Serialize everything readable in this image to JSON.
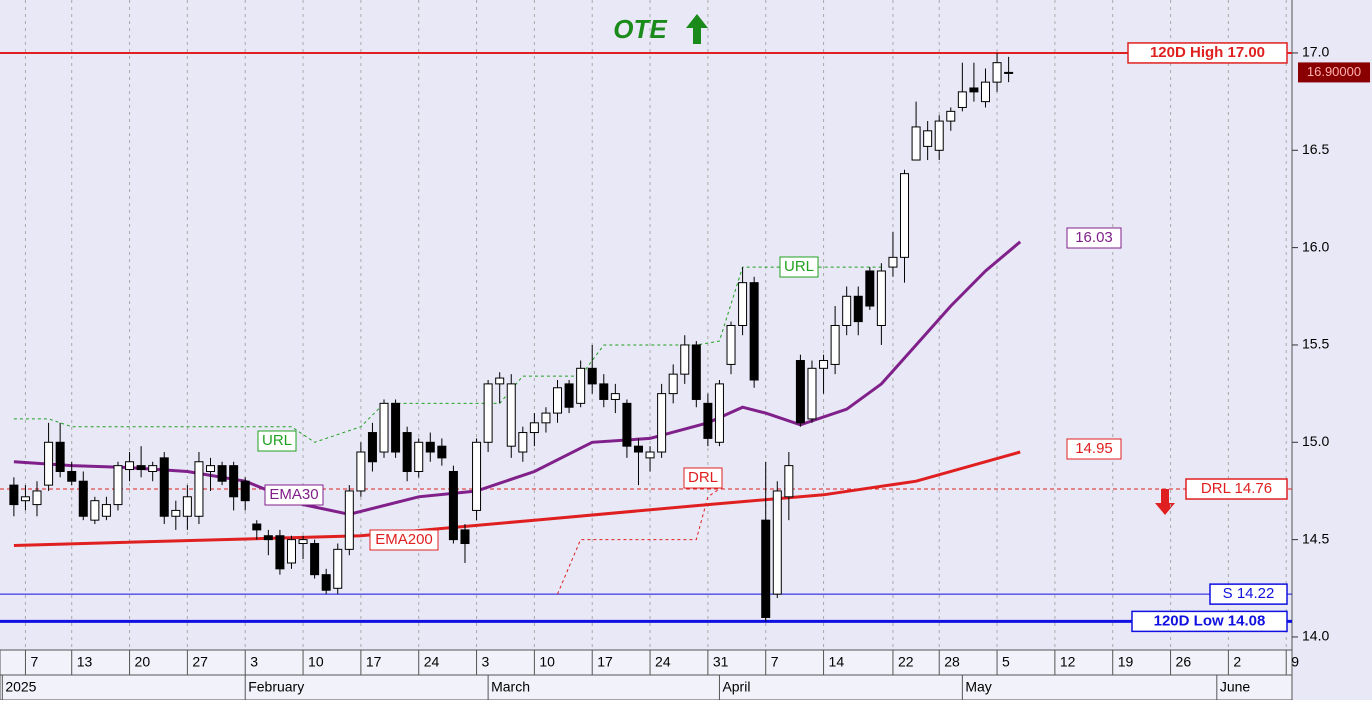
{
  "chart_data": {
    "type": "candlestick",
    "title": "OTE",
    "xlim": [
      -1.2,
      110.5
    ],
    "ylim": [
      13.933,
      17.272
    ],
    "yticks": [
      {
        "value": 14.0,
        "label": "14.0"
      },
      14.5,
      {
        "value": 15.0,
        "label": "15.0"
      },
      15.5,
      {
        "value": 16.0,
        "label": "16.0"
      },
      16.5,
      {
        "value": 17.0,
        "label": "17.0"
      }
    ],
    "xticks": [
      {
        "value": 1,
        "label": "7"
      },
      {
        "value": 5,
        "label": "13"
      },
      {
        "value": 10,
        "label": "20"
      },
      {
        "value": 15,
        "label": "27"
      },
      {
        "value": 20,
        "label": "3"
      },
      {
        "value": 25,
        "label": "10"
      },
      {
        "value": 30,
        "label": "17"
      },
      {
        "value": 35,
        "label": "24"
      },
      {
        "value": 40,
        "label": "3"
      },
      {
        "value": 45,
        "label": "10"
      },
      {
        "value": 50,
        "label": "17"
      },
      {
        "value": 55,
        "label": "24"
      },
      {
        "value": 60,
        "label": "31"
      },
      {
        "value": 65,
        "label": "7"
      },
      {
        "value": 70,
        "label": "14"
      },
      {
        "value": 76,
        "label": "22"
      },
      {
        "value": 80,
        "label": "28"
      },
      {
        "value": 85,
        "label": "5"
      },
      {
        "value": 90,
        "label": "12"
      },
      {
        "value": 95,
        "label": "19"
      },
      {
        "value": 100,
        "label": "26"
      },
      {
        "value": 105,
        "label": "2"
      },
      {
        "value": 110,
        "label": "9"
      }
    ],
    "month_ticks": [
      {
        "value": -1,
        "label": "2025"
      },
      {
        "value": 20,
        "label": "February"
      },
      {
        "value": 41,
        "label": "March"
      },
      {
        "value": 61,
        "label": "April"
      },
      {
        "value": 82,
        "label": "May"
      },
      {
        "value": 104,
        "label": "June"
      }
    ],
    "open": [
      14.78,
      14.7,
      14.68,
      14.78,
      15.0,
      14.85,
      14.8,
      14.6,
      14.62,
      14.68,
      14.86,
      14.88,
      14.85,
      14.92,
      14.62,
      14.62,
      14.62,
      14.85,
      14.88,
      14.88,
      14.8,
      14.58,
      14.52,
      14.52,
      14.38,
      14.48,
      14.48,
      14.32,
      14.25,
      14.45,
      14.75,
      15.05,
      14.95,
      15.2,
      15.05,
      14.85,
      15.0,
      14.98,
      14.85,
      14.55,
      14.65,
      15.0,
      15.3,
      14.98,
      14.95,
      15.05,
      15.1,
      15.15,
      15.3,
      15.2,
      15.38,
      15.3,
      15.22,
      15.2,
      14.98,
      14.92,
      14.95,
      15.25,
      15.35,
      15.5,
      15.2,
      15.0,
      15.4,
      15.6,
      15.82,
      14.6,
      14.22,
      14.72,
      15.42,
      15.12,
      15.38,
      15.4,
      15.6,
      15.75,
      15.88,
      15.6,
      15.9,
      15.95,
      16.45,
      16.52,
      16.5,
      16.65,
      16.72,
      16.82,
      16.75,
      16.85,
      16.9
    ],
    "high": [
      14.82,
      14.78,
      14.8,
      15.1,
      15.1,
      14.9,
      14.85,
      14.72,
      14.72,
      14.9,
      14.95,
      14.98,
      14.9,
      14.95,
      14.7,
      14.78,
      14.95,
      14.92,
      14.9,
      14.9,
      14.82,
      14.6,
      14.55,
      14.55,
      14.52,
      14.52,
      14.5,
      14.35,
      14.48,
      14.78,
      15.0,
      15.1,
      15.22,
      15.22,
      15.08,
      15.02,
      15.05,
      15.02,
      14.88,
      14.58,
      15.02,
      15.32,
      15.36,
      15.35,
      15.08,
      15.15,
      15.18,
      15.32,
      15.32,
      15.42,
      15.5,
      15.35,
      15.3,
      15.22,
      15.02,
      14.98,
      15.3,
      15.4,
      15.55,
      15.52,
      15.25,
      15.32,
      15.62,
      15.9,
      15.85,
      14.9,
      14.8,
      14.95,
      15.45,
      15.42,
      15.45,
      15.7,
      15.8,
      15.8,
      15.9,
      15.92,
      16.08,
      16.4,
      16.75,
      16.65,
      16.68,
      16.72,
      16.95,
      16.95,
      16.92,
      17.0,
      16.98
    ],
    "low": [
      14.62,
      14.65,
      14.62,
      14.75,
      14.82,
      14.78,
      14.6,
      14.58,
      14.6,
      14.65,
      14.8,
      14.82,
      14.8,
      14.58,
      14.55,
      14.55,
      14.58,
      14.75,
      14.78,
      14.65,
      14.65,
      14.5,
      14.42,
      14.32,
      14.35,
      14.4,
      14.3,
      14.22,
      14.22,
      14.42,
      14.72,
      14.85,
      14.92,
      14.92,
      14.8,
      14.82,
      14.9,
      14.88,
      14.48,
      14.38,
      14.6,
      14.95,
      15.2,
      14.92,
      14.9,
      14.98,
      15.05,
      15.1,
      15.15,
      15.18,
      15.25,
      15.18,
      15.15,
      14.92,
      14.78,
      14.85,
      14.92,
      15.2,
      15.3,
      15.18,
      14.98,
      14.98,
      15.35,
      15.55,
      15.28,
      14.08,
      14.2,
      14.6,
      15.08,
      15.1,
      15.25,
      15.35,
      15.55,
      15.55,
      15.68,
      15.5,
      15.85,
      15.82,
      16.45,
      16.45,
      16.45,
      16.6,
      16.7,
      16.75,
      16.72,
      16.8,
      16.85
    ],
    "close": [
      14.68,
      14.72,
      14.75,
      15.0,
      14.85,
      14.8,
      14.62,
      14.7,
      14.68,
      14.88,
      14.9,
      14.86,
      14.88,
      14.62,
      14.65,
      14.72,
      14.9,
      14.88,
      14.8,
      14.72,
      14.7,
      14.55,
      14.5,
      14.35,
      14.5,
      14.5,
      14.32,
      14.24,
      14.45,
      14.75,
      14.95,
      14.9,
      15.2,
      14.95,
      14.85,
      15.0,
      14.95,
      14.92,
      14.5,
      14.48,
      15.0,
      15.3,
      15.33,
      15.3,
      15.05,
      15.1,
      15.15,
      15.28,
      15.18,
      15.38,
      15.3,
      15.22,
      15.25,
      14.98,
      14.95,
      14.95,
      15.25,
      15.35,
      15.5,
      15.22,
      15.02,
      15.3,
      15.6,
      15.82,
      15.32,
      14.1,
      14.75,
      14.88,
      15.1,
      15.38,
      15.42,
      15.6,
      15.75,
      15.62,
      15.7,
      15.88,
      15.95,
      16.38,
      16.62,
      16.6,
      16.65,
      16.7,
      16.8,
      16.8,
      16.85,
      16.95,
      16.9
    ],
    "lines": [
      {
        "name": "EMA30",
        "color": "#80208a",
        "width": 3,
        "x": [
          0,
          5,
          10,
          15,
          20,
          25,
          29,
          35,
          40,
          45,
          50,
          55,
          60,
          63,
          65,
          68,
          72,
          75,
          78,
          81,
          84,
          87
        ],
        "values": [
          14.9,
          14.88,
          14.87,
          14.85,
          14.8,
          14.68,
          14.63,
          14.72,
          14.75,
          14.85,
          15.0,
          15.02,
          15.1,
          15.18,
          15.15,
          15.09,
          15.17,
          15.3,
          15.5,
          15.7,
          15.88,
          16.03
        ]
      },
      {
        "name": "EMA200",
        "color": "#e02020",
        "width": 3,
        "x": [
          0,
          30,
          45,
          60,
          70,
          78,
          87
        ],
        "values": [
          14.47,
          14.52,
          14.6,
          14.68,
          14.73,
          14.8,
          14.95
        ]
      },
      {
        "name": "URL",
        "color": "#20a020",
        "width": 1,
        "dash": true,
        "x": [
          0,
          3,
          5,
          24,
          26,
          30,
          32,
          42,
          44,
          49,
          51,
          59,
          61,
          63,
          75
        ],
        "values": [
          15.12,
          15.12,
          15.08,
          15.08,
          15.0,
          15.08,
          15.2,
          15.2,
          15.34,
          15.34,
          15.5,
          15.5,
          15.52,
          15.9,
          15.9
        ]
      },
      {
        "name": "DRL",
        "color": "#e02020",
        "width": 1,
        "dash": true,
        "x": [
          47,
          49,
          59,
          60,
          61
        ],
        "values": [
          14.22,
          14.5,
          14.5,
          14.72,
          14.76
        ]
      }
    ],
    "hlines": [
      {
        "label": "120D High 17.00",
        "value": 17.0,
        "color": "#e02020",
        "width": 2
      },
      {
        "label": "DRL 14.76",
        "value": 14.76,
        "color": "#e02020",
        "width": 1,
        "dash": true
      },
      {
        "label": "S 14.22",
        "value": 14.22,
        "color": "#1010e0",
        "width": 1
      },
      {
        "label": "120D Low 14.08",
        "value": 14.08,
        "color": "#1010e0",
        "width": 3
      }
    ],
    "last_price": {
      "value": 16.9,
      "label": "16.90000"
    }
  }
}
